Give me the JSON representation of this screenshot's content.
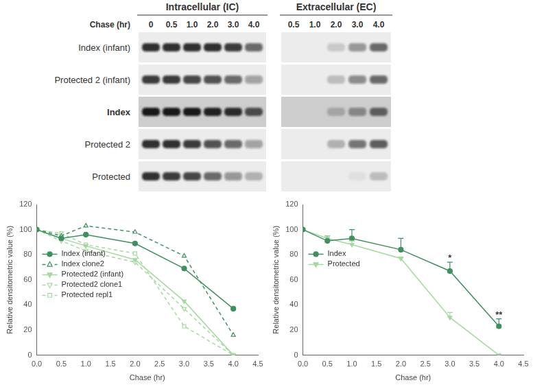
{
  "blot": {
    "headers": {
      "ic": "Intracellular (IC)",
      "ec": "Extracellular (EC)"
    },
    "chase_label": "Chase (hr)",
    "ic_lanes": [
      "0",
      "0.5",
      "1.0",
      "2.0",
      "3.0",
      "4.0"
    ],
    "ec_lanes": [
      "0.5",
      "1.0",
      "2.0",
      "3.0",
      "4.0"
    ],
    "rows": [
      {
        "label": "Index (infant)",
        "bold": false,
        "ic": [
          0.85,
          0.85,
          0.85,
          0.85,
          0.8,
          0.6
        ],
        "ec": [
          0,
          0,
          0.15,
          0.4,
          0.6
        ]
      },
      {
        "label": "Protected 2 (infant)",
        "bold": false,
        "ic": [
          0.8,
          0.8,
          0.75,
          0.7,
          0.6,
          0.35
        ],
        "ec": [
          0,
          0,
          0.2,
          0.45,
          0.6
        ]
      },
      {
        "label": "Index",
        "bold": true,
        "ic": [
          0.95,
          0.95,
          0.95,
          0.9,
          0.85,
          0.7
        ],
        "ec": [
          0,
          0,
          0.2,
          0.4,
          0.6
        ]
      },
      {
        "label": "Protected 2",
        "bold": false,
        "ic": [
          0.85,
          0.85,
          0.8,
          0.7,
          0.6,
          0.35
        ],
        "ec": [
          0,
          0,
          0.25,
          0.55,
          0.65
        ]
      },
      {
        "label": "Protected",
        "bold": false,
        "ic": [
          0.85,
          0.8,
          0.75,
          0.6,
          0.4,
          0.25
        ],
        "ec": [
          0,
          0,
          0,
          0.05,
          0.2
        ]
      }
    ]
  },
  "chart_data": [
    {
      "type": "line",
      "x_label": "Chase (hr)",
      "y_label": "Relative densitometric value (%)",
      "x": [
        0,
        0.5,
        1,
        2,
        3,
        4
      ],
      "xlim": [
        0,
        4.5
      ],
      "xticks": [
        {
          "value": 0,
          "label": "0.0"
        },
        {
          "value": 0.5,
          "label": "0.5"
        },
        {
          "value": 1,
          "label": "1.0"
        },
        {
          "value": 1.5,
          "label": "1.5"
        },
        {
          "value": 2,
          "label": "2.0"
        },
        {
          "value": 2.5,
          "label": "2.5"
        },
        {
          "value": 3,
          "label": "3.0"
        },
        {
          "value": 3.5,
          "label": "3.5"
        },
        {
          "value": 4,
          "label": "4.0"
        },
        {
          "value": 4.5,
          "label": "4.5"
        }
      ],
      "ylim": [
        0,
        120
      ],
      "yticks": [
        0,
        20,
        40,
        60,
        80,
        100,
        120
      ],
      "grid": false,
      "legend": "left",
      "series": [
        {
          "name": "Index (infant)",
          "color": "#3f8f5f",
          "marker": "circle",
          "line_style": "solid",
          "values": [
            100,
            93,
            96,
            89,
            69,
            37
          ]
        },
        {
          "name": "Index clone2",
          "color": "#3f8f5f",
          "marker": "triangle_open",
          "line_style": "dashed",
          "values": [
            100,
            95,
            103,
            98,
            79,
            16
          ]
        },
        {
          "name": "Protected2 (infant)",
          "color": "#a3d9a0",
          "marker": "triangle_down",
          "line_style": "solid",
          "values": [
            100,
            93,
            87,
            76,
            43,
            0
          ]
        },
        {
          "name": "Protected2 clone1",
          "color": "#a3d9a0",
          "marker": "triangle_down_open",
          "line_style": "dashed",
          "values": [
            100,
            91,
            83,
            74,
            37,
            0
          ]
        },
        {
          "name": "Protected repl1",
          "color": "#a3d9a0",
          "marker": "square_open",
          "line_style": "dashed",
          "values": [
            100,
            97,
            88,
            81,
            23,
            0
          ]
        }
      ]
    },
    {
      "type": "line",
      "x_label": "Chase (hr)",
      "y_label": "Relative densitometric value (%)",
      "x": [
        0,
        0.5,
        1,
        2,
        3,
        4
      ],
      "xlim": [
        0,
        4.5
      ],
      "xticks": [
        {
          "value": 0,
          "label": "0.0"
        },
        {
          "value": 0.5,
          "label": "0.5"
        },
        {
          "value": 1,
          "label": "1.0"
        },
        {
          "value": 1.5,
          "label": "1.5"
        },
        {
          "value": 2,
          "label": "2.0"
        },
        {
          "value": 2.5,
          "label": "2.5"
        },
        {
          "value": 3,
          "label": "3.0"
        },
        {
          "value": 3.5,
          "label": "3.5"
        },
        {
          "value": 4,
          "label": "4.0"
        },
        {
          "value": 4.5,
          "label": "4.5"
        }
      ],
      "ylim": [
        0,
        120
      ],
      "yticks": [
        0,
        20,
        40,
        60,
        80,
        100,
        120
      ],
      "grid": false,
      "legend": "left",
      "series": [
        {
          "name": "Index",
          "color": "#3f8f5f",
          "marker": "circle",
          "line_style": "solid",
          "values": [
            100,
            91,
            93,
            84,
            67,
            23
          ],
          "errors": [
            0,
            4,
            7,
            9,
            7,
            6
          ]
        },
        {
          "name": "Protected",
          "color": "#a3d9a0",
          "marker": "triangle_down",
          "line_style": "solid",
          "values": [
            100,
            93,
            88,
            77,
            30,
            0
          ],
          "errors": [
            0,
            2,
            3,
            1,
            4,
            0
          ]
        }
      ],
      "annotations": [
        {
          "x": 3,
          "y": 77,
          "text": "*"
        },
        {
          "x": 4,
          "y": 32,
          "text": "**"
        }
      ]
    }
  ]
}
